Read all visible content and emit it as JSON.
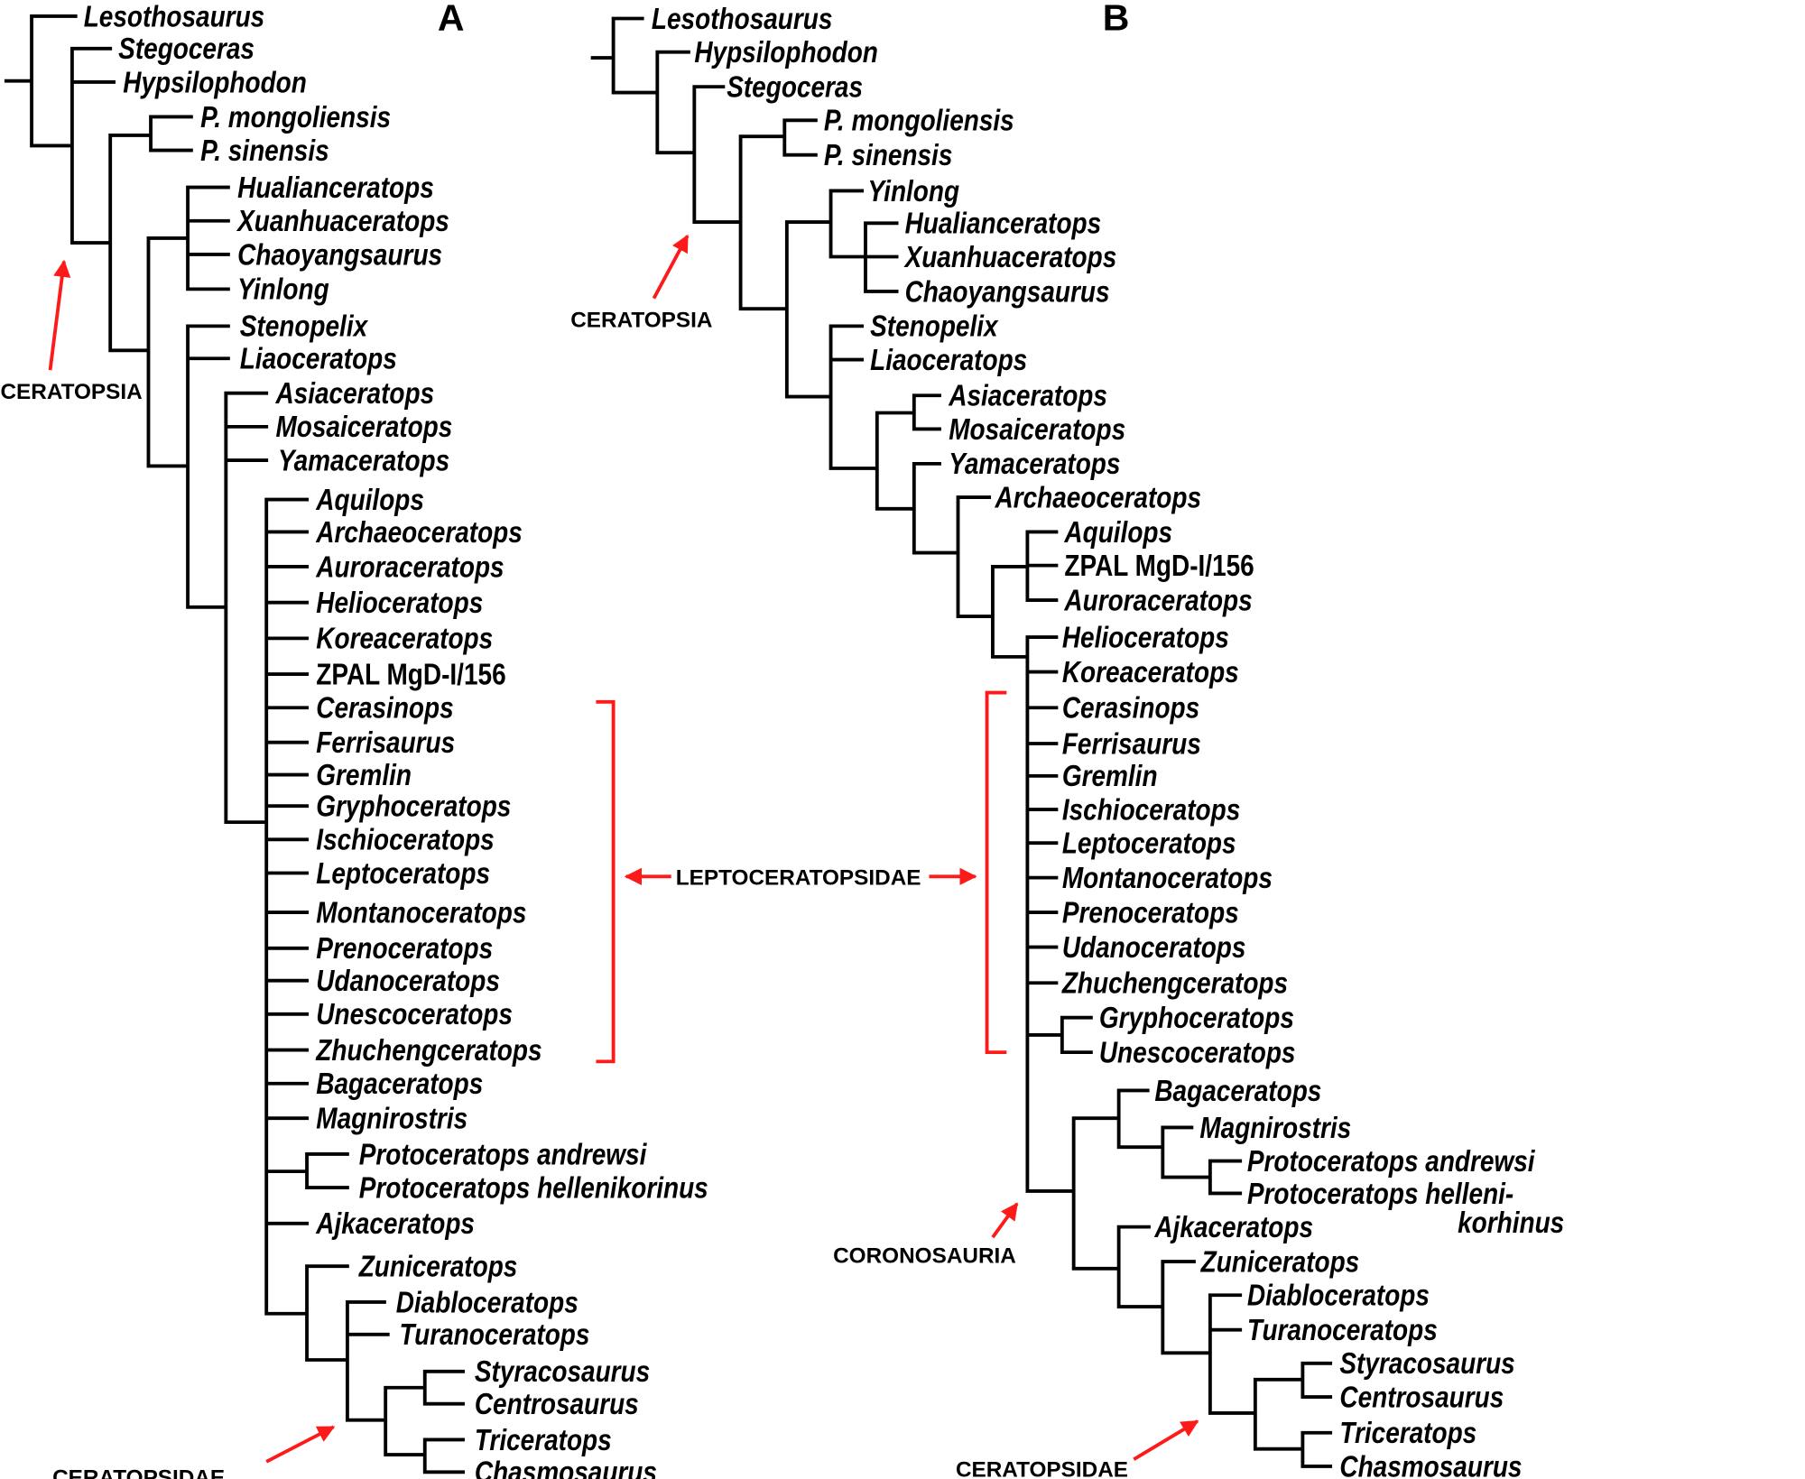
{
  "colors": {
    "highlight": "#ff1a1a",
    "arrow": "#ff1a1a",
    "branches": "#000000"
  },
  "tree_a": {
    "panel_label": "A",
    "annotations": {
      "ceratopsia": "CERATOPSIA",
      "ceratopsidae": "CERATOPSIDAE"
    },
    "taxa": [
      {
        "name": "Lesothosaurus"
      },
      {
        "name": "Stegoceras"
      },
      {
        "name": "Hypsilophodon"
      },
      {
        "name": "P. mongoliensis"
      },
      {
        "name": "P. sinensis"
      },
      {
        "name": "Hualianceratops"
      },
      {
        "name": "Xuanhuaceratops"
      },
      {
        "name": "Chaoyangsaurus"
      },
      {
        "name": "Yinlong"
      },
      {
        "name": "Stenopelix"
      },
      {
        "name": "Liaoceratops"
      },
      {
        "name": "Asiaceratops"
      },
      {
        "name": "Mosaiceratops"
      },
      {
        "name": "Yamaceratops"
      },
      {
        "name": "Aquilops"
      },
      {
        "name": "Archaeoceratops"
      },
      {
        "name": "Auroraceratops"
      },
      {
        "name": "Helioceratops"
      },
      {
        "name": "Koreaceratops"
      },
      {
        "name": "ZPAL MgD-I/156",
        "italic": false
      },
      {
        "name": "Cerasinops"
      },
      {
        "name": "Ferrisaurus"
      },
      {
        "name": "Gremlin",
        "highlight": true
      },
      {
        "name": "Gryphoceratops"
      },
      {
        "name": "Ischioceratops"
      },
      {
        "name": "Leptoceratops"
      },
      {
        "name": "Montanoceratops"
      },
      {
        "name": "Prenoceratops"
      },
      {
        "name": "Udanoceratops"
      },
      {
        "name": "Unescoceratops"
      },
      {
        "name": "Zhuchengceratops"
      },
      {
        "name": "Bagaceratops"
      },
      {
        "name": "Magnirostris"
      },
      {
        "name": "Protoceratops andrewsi"
      },
      {
        "name": "Protoceratops hellenikorinus"
      },
      {
        "name": "Ajkaceratops"
      },
      {
        "name": "Zuniceratops"
      },
      {
        "name": "Diabloceratops"
      },
      {
        "name": "Turanoceratops"
      },
      {
        "name": "Styracosaurus"
      },
      {
        "name": "Centrosaurus"
      },
      {
        "name": "Triceratops"
      },
      {
        "name": "Chasmosaurus"
      }
    ]
  },
  "shared": {
    "leptoceratopsidae": "LEPTOCERATOPSIDAE"
  },
  "tree_b": {
    "panel_label": "B",
    "annotations": {
      "ceratopsia": "CERATOPSIA",
      "coronosauria": "CORONOSAURIA",
      "ceratopsidae": "CERATOPSIDAE"
    },
    "taxa": [
      {
        "name": "Lesothosaurus"
      },
      {
        "name": "Hypsilophodon"
      },
      {
        "name": "Stegoceras"
      },
      {
        "name": "P. mongoliensis"
      },
      {
        "name": "P. sinensis"
      },
      {
        "name": "Yinlong"
      },
      {
        "name": "Hualianceratops"
      },
      {
        "name": "Xuanhuaceratops"
      },
      {
        "name": "Chaoyangsaurus"
      },
      {
        "name": "Stenopelix"
      },
      {
        "name": "Liaoceratops"
      },
      {
        "name": "Asiaceratops"
      },
      {
        "name": "Mosaiceratops"
      },
      {
        "name": "Yamaceratops"
      },
      {
        "name": "Archaeoceratops"
      },
      {
        "name": "Aquilops"
      },
      {
        "name": "ZPAL MgD-I/156",
        "italic": false
      },
      {
        "name": "Auroraceratops"
      },
      {
        "name": "Helioceratops"
      },
      {
        "name": "Koreaceratops"
      },
      {
        "name": "Cerasinops"
      },
      {
        "name": "Ferrisaurus"
      },
      {
        "name": "Gremlin",
        "highlight": true
      },
      {
        "name": "Ischioceratops"
      },
      {
        "name": "Leptoceratops"
      },
      {
        "name": "Montanoceratops"
      },
      {
        "name": "Prenoceratops"
      },
      {
        "name": "Udanoceratops"
      },
      {
        "name": "Zhuchengceratops"
      },
      {
        "name": "Gryphoceratops"
      },
      {
        "name": "Unescoceratops"
      },
      {
        "name": "Bagaceratops"
      },
      {
        "name": "Magnirostris"
      },
      {
        "name": "Protoceratops andrewsi"
      },
      {
        "name": "Protoceratops helleni-"
      },
      {
        "name": "korhinus"
      },
      {
        "name": "Ajkaceratops"
      },
      {
        "name": "Zuniceratops"
      },
      {
        "name": "Diabloceratops"
      },
      {
        "name": "Turanoceratops"
      },
      {
        "name": "Styracosaurus"
      },
      {
        "name": "Centrosaurus"
      },
      {
        "name": "Triceratops"
      },
      {
        "name": "Chasmosaurus"
      }
    ]
  }
}
